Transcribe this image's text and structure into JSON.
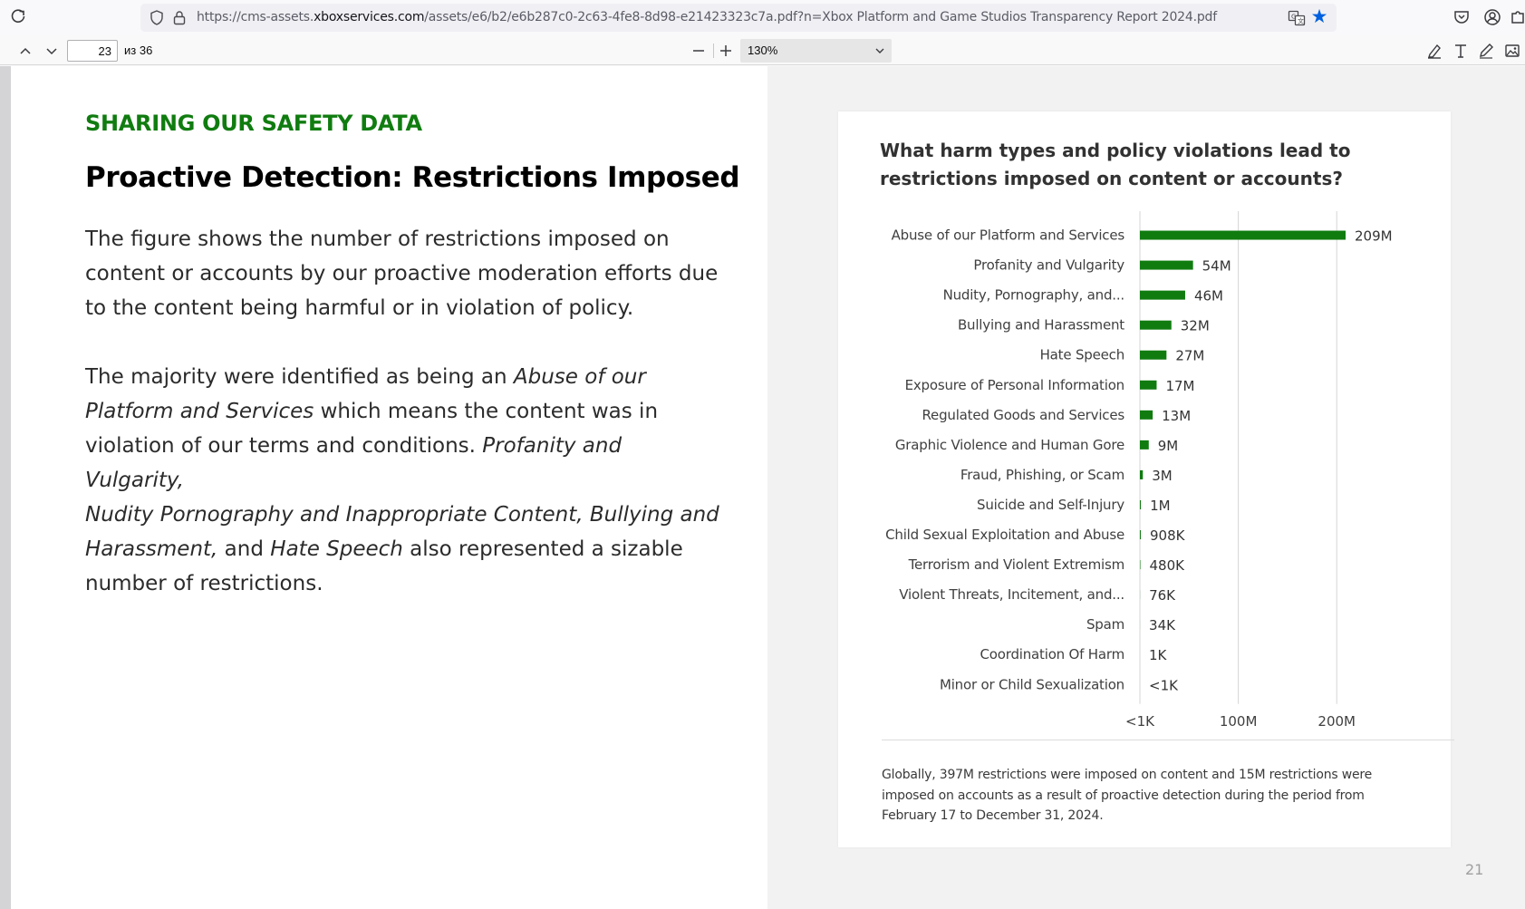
{
  "browser": {
    "url_prefix": "https://cms-assets.",
    "url_host": "xboxservices.com",
    "url_path": "/assets/e6/b2/e6b287c0-2c63-4fe8-8d98-e21423323c7a.pdf?n=Xbox Platform and Game Studios Transparency Report 2024.pdf"
  },
  "pdf_toolbar": {
    "page_value": "23",
    "page_count": "из 36",
    "zoom": "130%"
  },
  "doc": {
    "kicker": "SHARING OUR SAFETY DATA",
    "headline": "Proactive Detection: Restrictions Imposed",
    "para1": "The figure shows the number of restrictions imposed on content or accounts by our proactive moderation efforts due to the content being harmful or in violation of policy.",
    "para2": {
      "t1": "The majority were identified as being an ",
      "i1": "Abuse of our Platform and Services",
      "t2": " which means the content was in violation of our terms and conditions. ",
      "i2": "Profanity and Vulgarity,",
      "i3": "Nudity Pornography and Inappropriate Content, Bullying and Harassment,",
      "t3": " and ",
      "i4": "Hate Speech",
      "t4": " also represented a sizable number of restrictions."
    },
    "card_title": "What harm types and policy violations lead to restrictions imposed on content or accounts?",
    "card_note": "Globally, 397M restrictions were imposed on content and 15M restrictions were imposed on accounts as a result of proactive detection during the period from February 17 to December 31, 2024.",
    "page_number": "21"
  },
  "chart_data": {
    "type": "bar",
    "orientation": "horizontal",
    "title": "What harm types and policy violations lead to restrictions imposed on content or accounts?",
    "categories": [
      "Abuse of our Platform and Services",
      "Profanity and Vulgarity",
      "Nudity, Pornography, and...",
      "Bullying and Harassment",
      "Hate Speech",
      "Exposure of Personal Information",
      "Regulated Goods and Services",
      "Graphic Violence and Human Gore",
      "Fraud, Phishing, or Scam",
      "Suicide and Self-Injury",
      "Child Sexual Exploitation and Abuse",
      "Terrorism and Violent Extremism",
      "Violent Threats, Incitement, and...",
      "Spam",
      "Coordination Of Harm",
      "Minor or Child Sexualization"
    ],
    "values": [
      209000000,
      54000000,
      46000000,
      32000000,
      27000000,
      17000000,
      13000000,
      9000000,
      3000000,
      1000000,
      908000,
      480000,
      76000,
      34000,
      1000,
      500
    ],
    "value_labels": [
      "209M",
      "54M",
      "46M",
      "32M",
      "27M",
      "17M",
      "13M",
      "9M",
      "3M",
      "1M",
      "908K",
      "480K",
      "76K",
      "34K",
      "1K",
      "<1K"
    ],
    "x_ticks": [
      0,
      100000000,
      200000000
    ],
    "x_tick_labels": [
      "<1K",
      "100M",
      "200M"
    ],
    "xlim": [
      0,
      209000000
    ],
    "grid": true,
    "bar_color": "#107c10"
  }
}
